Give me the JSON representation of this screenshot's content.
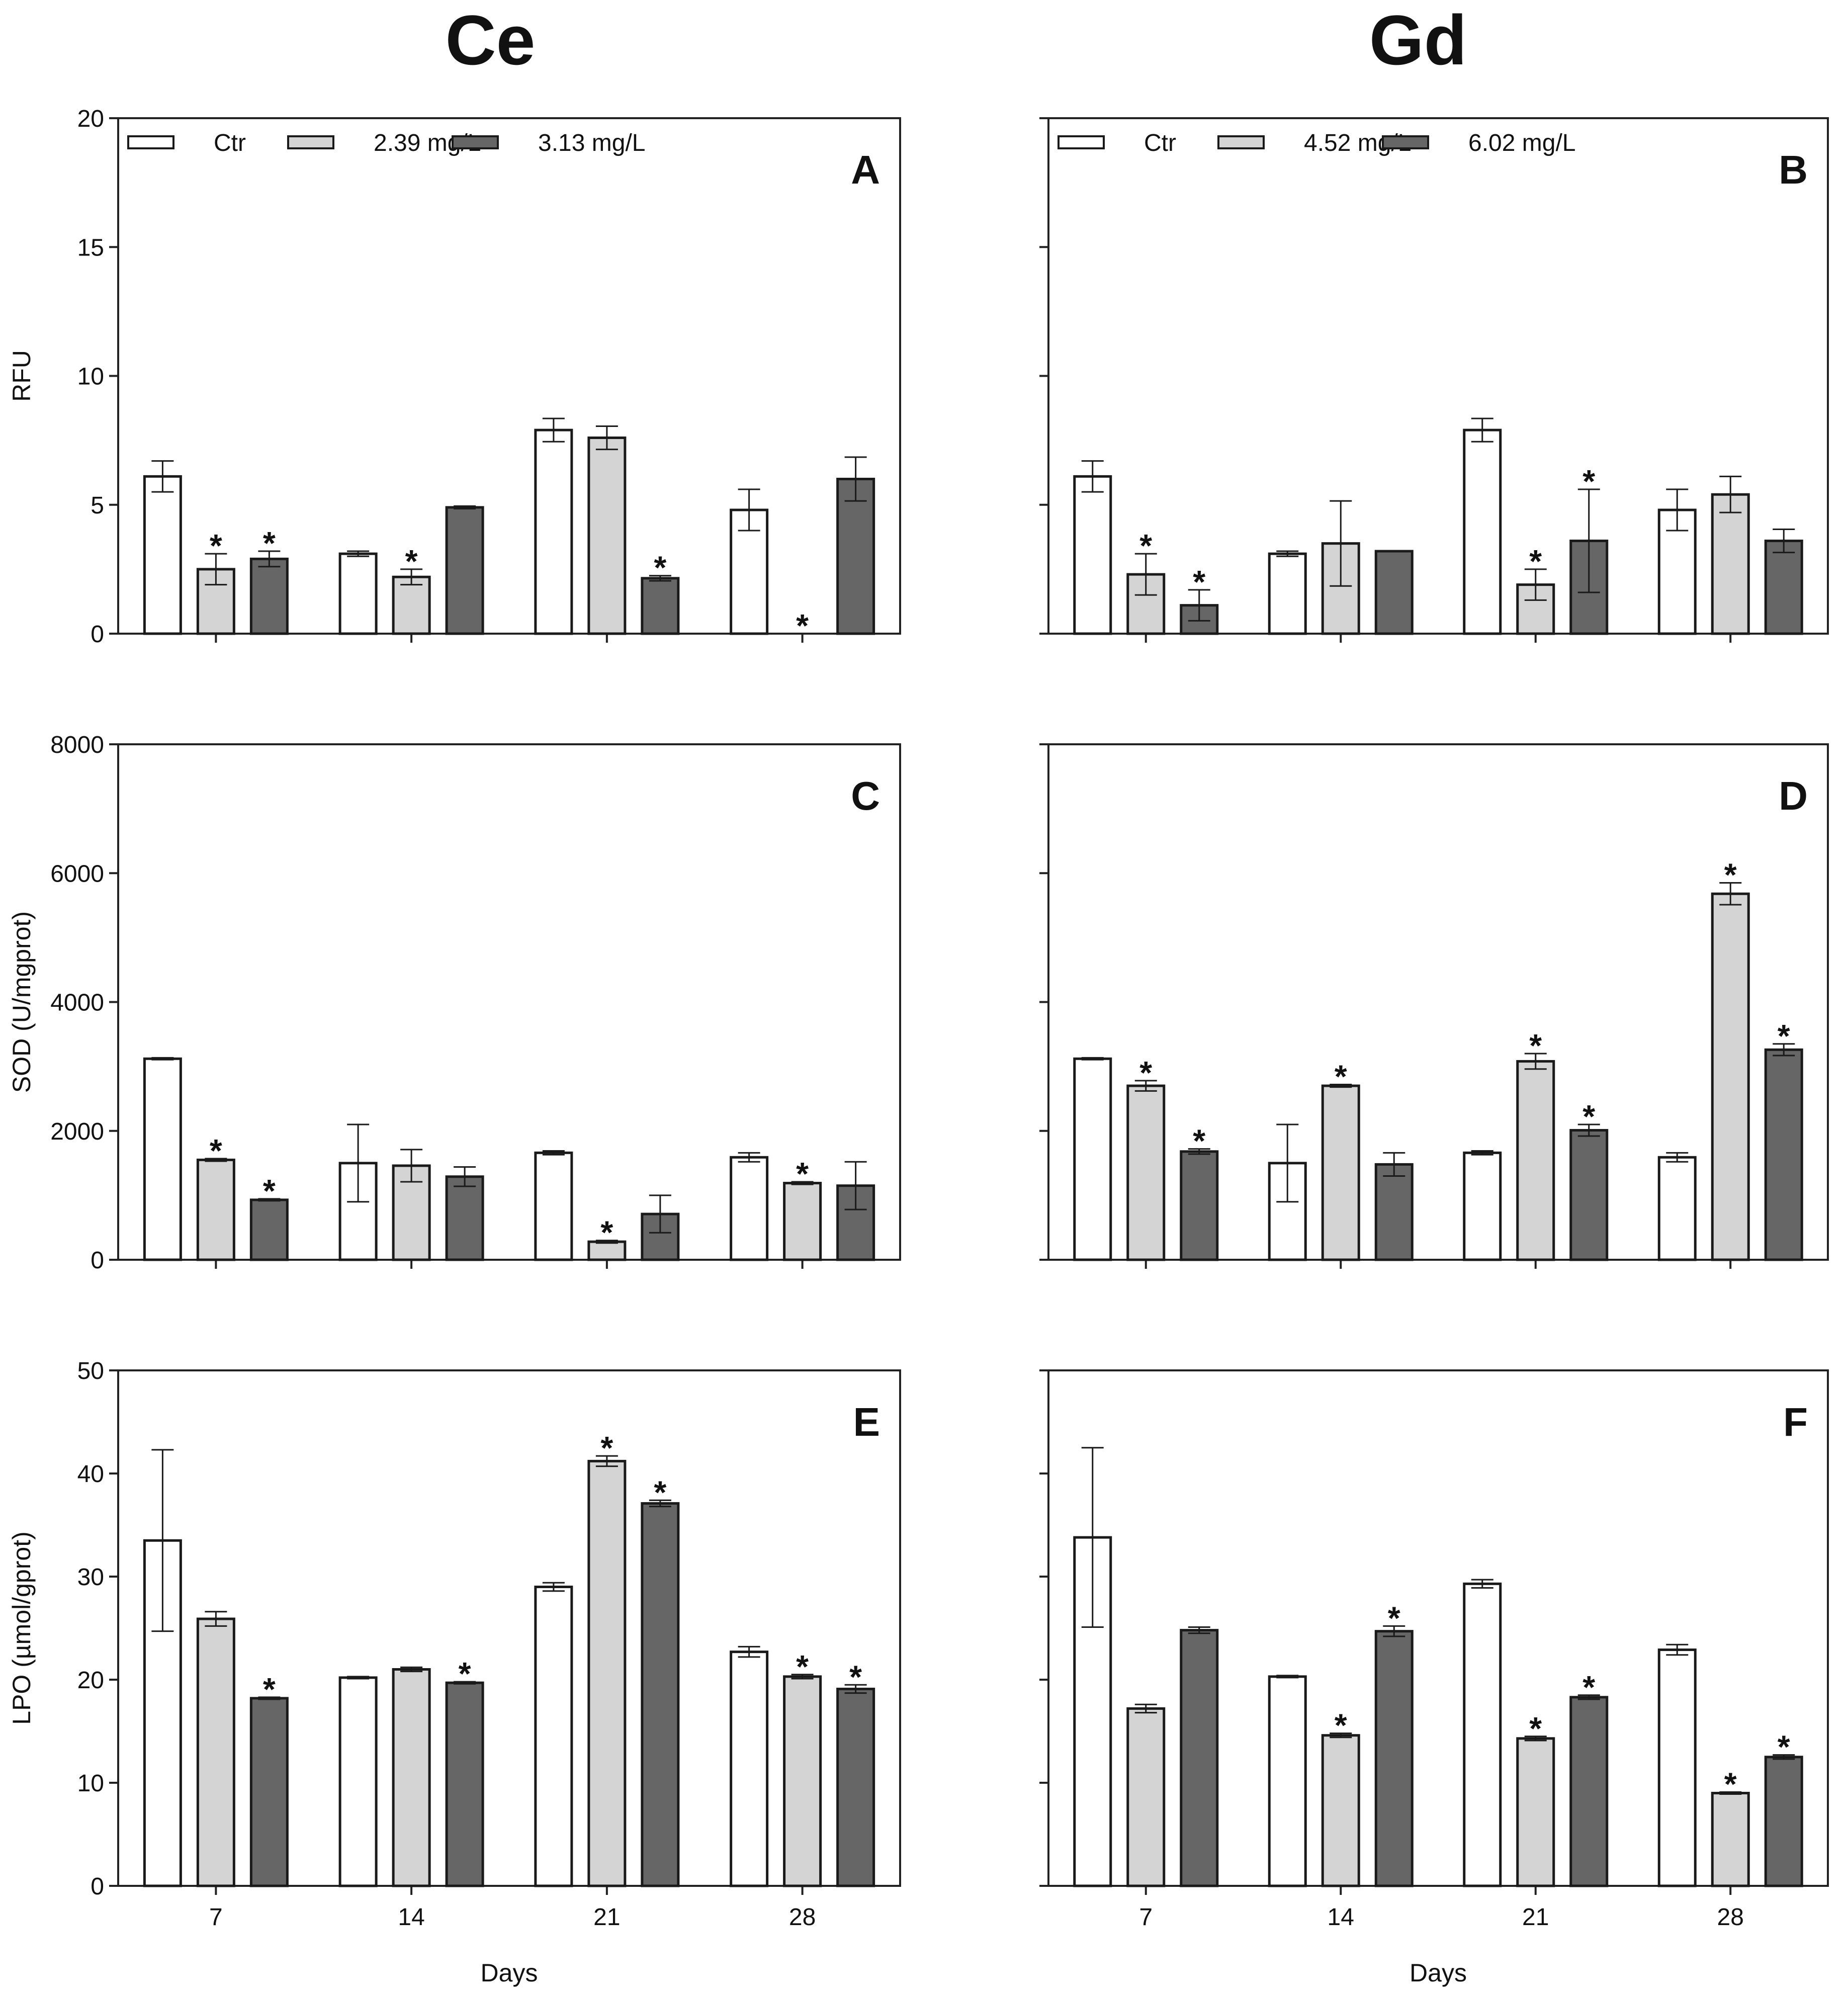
{
  "figure": {
    "column_titles": [
      "Ce",
      "Gd"
    ]
  },
  "chart_data": [
    {
      "panel": "A",
      "type": "bar",
      "element": "Ce",
      "ylabel": "RFU",
      "xlabel": "",
      "ylim": [
        0,
        20
      ],
      "yticks": [
        0,
        5,
        10,
        15,
        20
      ],
      "ytick_labels": [
        "0",
        "5",
        "10",
        "15",
        "20"
      ],
      "categories": [
        "7",
        "14",
        "21",
        "28"
      ],
      "show_x_tick_labels": false,
      "show_y_tick_labels": true,
      "legend": [
        "Ctr",
        "2.39 mg/L",
        "3.13 mg/L"
      ],
      "series": [
        {
          "name": "Ctr",
          "color": "#ffffff",
          "values": [
            6.1,
            3.1,
            7.9,
            4.8
          ],
          "errors": [
            0.6,
            0.1,
            0.45,
            0.8
          ],
          "sig": [
            false,
            false,
            false,
            false
          ]
        },
        {
          "name": "2.39 mg/L",
          "color": "#d4d4d4",
          "values": [
            2.5,
            2.2,
            7.6,
            0
          ],
          "errors": [
            0.6,
            0.3,
            0.45,
            0
          ],
          "sig": [
            true,
            true,
            false,
            true
          ]
        },
        {
          "name": "3.13 mg/L",
          "color": "#666666",
          "values": [
            2.9,
            4.9,
            2.15,
            6.0
          ],
          "errors": [
            0.3,
            0.05,
            0.1,
            0.85
          ],
          "sig": [
            true,
            false,
            true,
            false
          ]
        }
      ]
    },
    {
      "panel": "B",
      "type": "bar",
      "element": "Gd",
      "ylabel": "",
      "xlabel": "",
      "ylim": [
        0,
        20
      ],
      "yticks": [
        0,
        5,
        10,
        15,
        20
      ],
      "ytick_labels": [],
      "categories": [
        "7",
        "14",
        "21",
        "28"
      ],
      "show_x_tick_labels": false,
      "show_y_tick_labels": false,
      "legend": [
        "Ctr",
        "4.52 mg/L",
        "6.02 mg/L"
      ],
      "series": [
        {
          "name": "Ctr",
          "color": "#ffffff",
          "values": [
            6.1,
            3.1,
            7.9,
            4.8
          ],
          "errors": [
            0.6,
            0.1,
            0.45,
            0.8
          ],
          "sig": [
            false,
            false,
            false,
            false
          ]
        },
        {
          "name": "4.52 mg/L",
          "color": "#d4d4d4",
          "values": [
            2.3,
            3.5,
            1.9,
            5.4
          ],
          "errors": [
            0.8,
            1.65,
            0.6,
            0.7
          ],
          "sig": [
            true,
            false,
            true,
            false
          ]
        },
        {
          "name": "6.02 mg/L",
          "color": "#666666",
          "values": [
            1.1,
            3.2,
            3.6,
            3.6
          ],
          "errors": [
            0.6,
            0,
            2.0,
            0.45
          ],
          "sig": [
            true,
            false,
            true,
            false
          ]
        }
      ]
    },
    {
      "panel": "C",
      "type": "bar",
      "element": "Ce",
      "ylabel": "SOD (U/mgprot)",
      "xlabel": "",
      "ylim": [
        0,
        8000
      ],
      "yticks": [
        0,
        2000,
        4000,
        6000,
        8000
      ],
      "ytick_labels": [
        "0",
        "2000",
        "4000",
        "6000",
        "8000"
      ],
      "categories": [
        "7",
        "14",
        "21",
        "28"
      ],
      "show_x_tick_labels": false,
      "show_y_tick_labels": true,
      "legend": [],
      "series": [
        {
          "name": "Ctr",
          "color": "#ffffff",
          "values": [
            3120,
            1500,
            1660,
            1590
          ],
          "errors": [
            15,
            600,
            30,
            70
          ],
          "sig": [
            false,
            false,
            false,
            false
          ]
        },
        {
          "name": "2.39 mg/L",
          "color": "#d4d4d4",
          "values": [
            1550,
            1460,
            280,
            1190
          ],
          "errors": [
            20,
            250,
            20,
            20
          ],
          "sig": [
            true,
            false,
            true,
            true
          ]
        },
        {
          "name": "3.13 mg/L",
          "color": "#666666",
          "values": [
            930,
            1290,
            710,
            1150
          ],
          "errors": [
            15,
            150,
            290,
            370
          ],
          "sig": [
            true,
            false,
            false,
            false
          ]
        }
      ]
    },
    {
      "panel": "D",
      "type": "bar",
      "element": "Gd",
      "ylabel": "",
      "xlabel": "",
      "ylim": [
        0,
        8000
      ],
      "yticks": [
        0,
        2000,
        4000,
        6000,
        8000
      ],
      "ytick_labels": [],
      "categories": [
        "7",
        "14",
        "21",
        "28"
      ],
      "show_x_tick_labels": false,
      "show_y_tick_labels": false,
      "legend": [],
      "series": [
        {
          "name": "Ctr",
          "color": "#ffffff",
          "values": [
            3120,
            1500,
            1660,
            1590
          ],
          "errors": [
            15,
            600,
            30,
            70
          ],
          "sig": [
            false,
            false,
            false,
            false
          ]
        },
        {
          "name": "4.52 mg/L",
          "color": "#d4d4d4",
          "values": [
            2700,
            2700,
            3080,
            5680
          ],
          "errors": [
            80,
            20,
            120,
            170
          ],
          "sig": [
            true,
            true,
            true,
            true
          ]
        },
        {
          "name": "6.02 mg/L",
          "color": "#666666",
          "values": [
            1680,
            1480,
            2010,
            3260
          ],
          "errors": [
            40,
            180,
            90,
            90
          ],
          "sig": [
            true,
            false,
            true,
            true
          ]
        }
      ]
    },
    {
      "panel": "E",
      "type": "bar",
      "element": "Ce",
      "ylabel": "LPO (µmol/gprot)",
      "xlabel": "Days",
      "ylim": [
        0,
        50
      ],
      "yticks": [
        0,
        10,
        20,
        30,
        40,
        50
      ],
      "ytick_labels": [
        "0",
        "10",
        "20",
        "30",
        "40",
        "50"
      ],
      "categories": [
        "7",
        "14",
        "21",
        "28"
      ],
      "show_x_tick_labels": true,
      "show_y_tick_labels": true,
      "legend": [],
      "series": [
        {
          "name": "Ctr",
          "color": "#ffffff",
          "values": [
            33.5,
            20.2,
            29.0,
            22.7
          ],
          "errors": [
            8.8,
            0.1,
            0.4,
            0.5
          ],
          "sig": [
            false,
            false,
            false,
            false
          ]
        },
        {
          "name": "2.39 mg/L",
          "color": "#d4d4d4",
          "values": [
            25.9,
            21.0,
            41.2,
            20.3
          ],
          "errors": [
            0.7,
            0.2,
            0.5,
            0.2
          ],
          "sig": [
            false,
            false,
            true,
            true
          ]
        },
        {
          "name": "3.13 mg/L",
          "color": "#666666",
          "values": [
            18.2,
            19.7,
            37.1,
            19.1
          ],
          "errors": [
            0.1,
            0.1,
            0.3,
            0.4
          ],
          "sig": [
            true,
            true,
            true,
            true
          ]
        }
      ]
    },
    {
      "panel": "F",
      "type": "bar",
      "element": "Gd",
      "ylabel": "",
      "xlabel": "Days",
      "ylim": [
        0,
        50
      ],
      "yticks": [
        0,
        10,
        20,
        30,
        40,
        50
      ],
      "ytick_labels": [],
      "categories": [
        "7",
        "14",
        "21",
        "28"
      ],
      "show_x_tick_labels": true,
      "show_y_tick_labels": false,
      "legend": [],
      "series": [
        {
          "name": "Ctr",
          "color": "#ffffff",
          "values": [
            33.8,
            20.3,
            29.3,
            22.9
          ],
          "errors": [
            8.7,
            0.1,
            0.4,
            0.5
          ],
          "sig": [
            false,
            false,
            false,
            false
          ]
        },
        {
          "name": "4.52 mg/L",
          "color": "#d4d4d4",
          "values": [
            17.2,
            14.6,
            14.3,
            9.0
          ],
          "errors": [
            0.4,
            0.2,
            0.2,
            0.1
          ],
          "sig": [
            false,
            true,
            true,
            true
          ]
        },
        {
          "name": "6.02 mg/L",
          "color": "#666666",
          "values": [
            24.8,
            24.7,
            18.3,
            12.5
          ],
          "errors": [
            0.3,
            0.5,
            0.2,
            0.2
          ],
          "sig": [
            false,
            true,
            true,
            true
          ]
        }
      ]
    }
  ]
}
